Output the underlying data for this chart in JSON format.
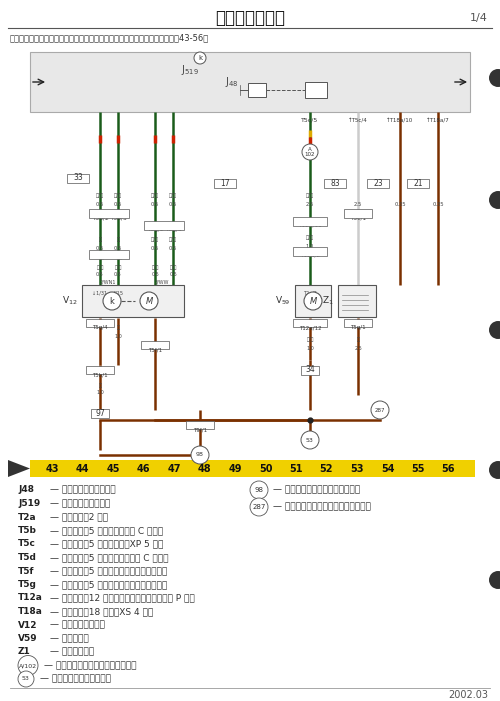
{
  "title": "基本装置电路图",
  "page": "1/4",
  "subtitle": "车载网络的控制单元、后窗刮水器的马达、前后刮水器的泵、后风窗除霜器（43-56）",
  "page_bg": "#ffffff",
  "yellow_bar_color": "#f0d000",
  "bottom_numbers": [
    "43",
    "44",
    "45",
    "46",
    "47",
    "48",
    "49",
    "50",
    "51",
    "52",
    "53",
    "54",
    "55",
    "56"
  ],
  "legend_col1": [
    [
      "J48",
      "— 后风窗除霜器的继电器"
    ],
    [
      "J519",
      "— 车载网络的控制单元"
    ],
    [
      "T2a",
      "— 插头连接，2 针脚"
    ],
    [
      "T5b",
      "— 插头连接，5 针脚，棕色，在 C 柱，左"
    ],
    [
      "T5c",
      "— 插头连接，5 针脚，棕色，XP 5 号位"
    ],
    [
      "T5d",
      "— 插头连接，5 针脚，粉红色，在 C 柱，左"
    ],
    [
      "T5f",
      "— 插头连接，5 针脚，黑色，在行李箱盖左侧"
    ],
    [
      "T5g",
      "— 插头连接，5 针脚，棕色，在行李箱盖左侧"
    ],
    [
      "T12a",
      "— 插头连接，12 针脚，白色，在前隔板的左面 P 号位"
    ],
    [
      "T18a",
      "— 插头连接，18 针脚，XS 4 号位"
    ],
    [
      "V12",
      "— 后窗刮水器的马达"
    ],
    [
      "V59",
      "— 风窗清洗泵"
    ],
    [
      "Z1",
      "— 后风窗除霜器"
    ]
  ],
  "legend_col1b": [
    [
      "A/102",
      "— 连接（刮水器），在仪表板线束中"
    ],
    [
      "53",
      "— 接地点，在行李箱的左面"
    ]
  ],
  "legend_col2": [
    [
      "98",
      "— 接地连接，在行李箱盖的线束内"
    ],
    [
      "287",
      "— 接地连接，在行李箱盖的线束的入口"
    ]
  ],
  "date": "2002.03",
  "green_dark": "#1a5c1a",
  "red_band": "#cc2200",
  "yellow_band": "#ddaa00",
  "brown": "#7a3000",
  "gray_light": "#cccccc",
  "box_bg": "#e8e8e8"
}
